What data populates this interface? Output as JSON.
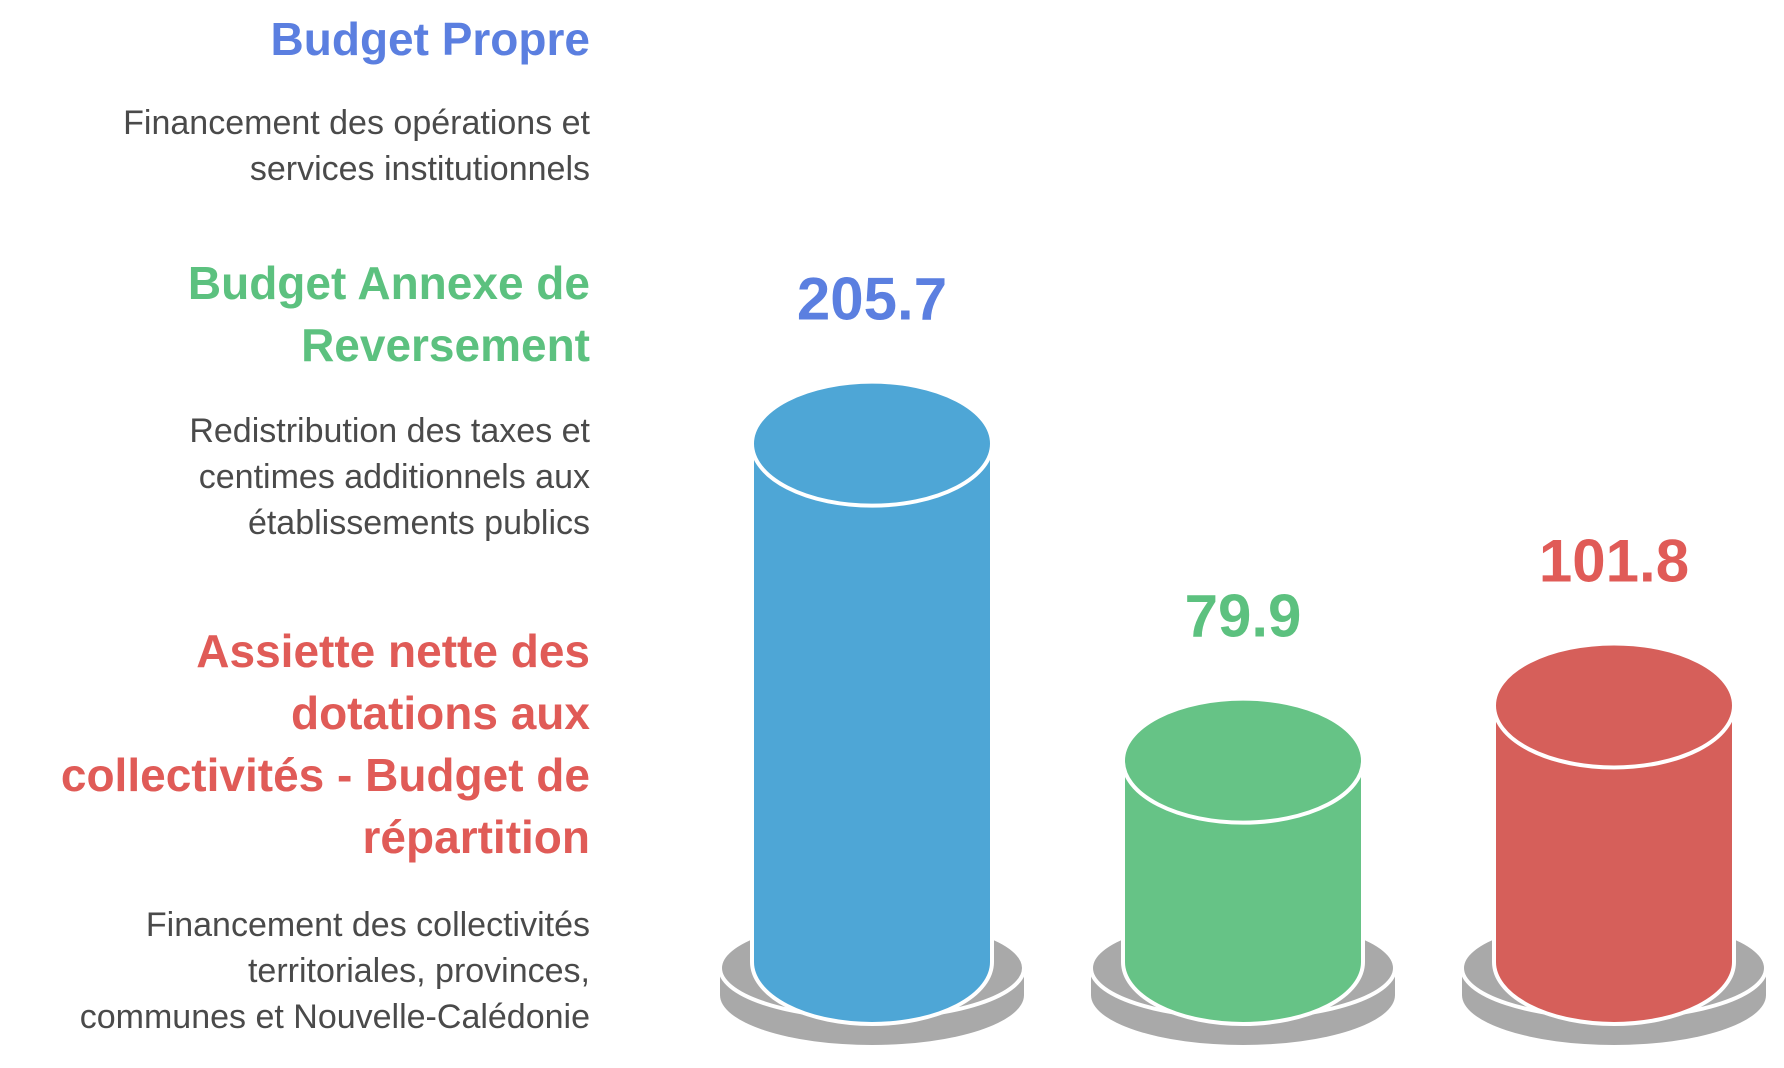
{
  "legend": [
    {
      "title": "Budget Propre",
      "description_lines": [
        "Financement des opérations et",
        "services institutionnels"
      ],
      "color": "#5b7fe0"
    },
    {
      "title_lines": [
        "Budget Annexe de",
        "Reversement"
      ],
      "description_lines": [
        "Redistribution des taxes et",
        "centimes additionnels aux",
        "établissements publics"
      ],
      "color": "#5cc17f"
    },
    {
      "title_lines": [
        "Assiette nette des",
        "dotations aux",
        "collectivités - Budget de",
        "répartition"
      ],
      "description_lines": [
        "Financement des collectivités",
        "territoriales, provinces,",
        "communes et Nouvelle-Calédonie"
      ],
      "color": "#e05b57"
    }
  ],
  "chart_data": {
    "type": "bar",
    "style": "3d-cylinder",
    "categories": [
      "Budget Propre",
      "Budget Annexe de Reversement",
      "Assiette nette des dotations aux collectivités - Budget de répartition"
    ],
    "values": [
      205.7,
      79.9,
      101.8
    ],
    "value_labels": [
      "205.7",
      "79.9",
      "101.8"
    ],
    "label_colors": [
      "#5b7fe0",
      "#5cc17f",
      "#e05b57"
    ],
    "bar_colors": [
      "#4ea6d6",
      "#66c386",
      "#d65f5a"
    ],
    "base_color": "#a9a9a9",
    "grid": false
  }
}
